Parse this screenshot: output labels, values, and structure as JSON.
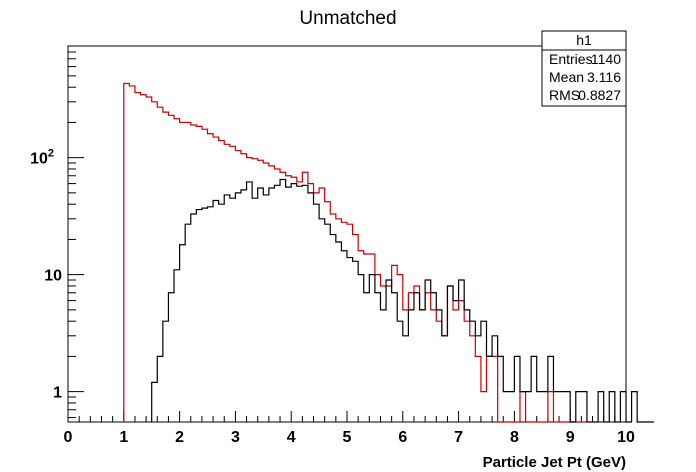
{
  "chart_data": {
    "type": "histogram",
    "title": "Unmatched",
    "xlabel": "Particle Jet Pt (GeV)",
    "ylabel": "",
    "xlim": [
      0,
      10
    ],
    "ylim": [
      0.55,
      900
    ],
    "y_scale": "log",
    "grid": false,
    "bin_width": 0.1,
    "x_ticks": [
      "0",
      "1",
      "2",
      "3",
      "4",
      "5",
      "6",
      "7",
      "8",
      "9",
      "10"
    ],
    "y_ticks": [
      {
        "value": 1,
        "base": "1",
        "exp": ""
      },
      {
        "value": 10,
        "base": "10",
        "exp": ""
      },
      {
        "value": 100,
        "base": "10",
        "exp": "2"
      }
    ],
    "stats_box": {
      "name": "h1",
      "placement": "top-right",
      "rows": [
        {
          "label": "Entries",
          "value": "1140"
        },
        {
          "label": "Mean",
          "value": "3.116"
        },
        {
          "label": "RMS",
          "value": "0.8827"
        }
      ]
    },
    "series": [
      {
        "color": "#cc0000",
        "x_start": 1.0,
        "values": [
          430,
          410,
          360,
          345,
          330,
          300,
          270,
          245,
          230,
          215,
          200,
          200,
          190,
          185,
          175,
          160,
          150,
          140,
          130,
          125,
          115,
          108,
          100,
          98,
          95,
          90,
          85,
          80,
          75,
          70,
          68,
          62,
          75,
          60,
          50,
          55,
          42,
          33,
          30,
          28,
          27,
          22,
          16,
          15,
          15,
          10,
          8,
          8,
          12,
          10,
          5,
          7,
          8,
          5,
          7,
          5,
          4,
          3,
          8,
          5,
          6,
          4,
          3,
          2,
          1,
          2,
          2,
          0,
          0,
          0,
          0,
          1,
          0,
          0,
          0,
          0,
          1,
          0,
          0,
          0,
          0,
          0,
          0
        ]
      },
      {
        "color": "#000000",
        "x_start": 1.5,
        "values": [
          1.2,
          2.0,
          4.0,
          7.0,
          11,
          18,
          27,
          33,
          36,
          37,
          38,
          43,
          40,
          48,
          45,
          50,
          53,
          62,
          45,
          55,
          48,
          55,
          58,
          65,
          56,
          60,
          57,
          58,
          50,
          40,
          30,
          27,
          22,
          19,
          16,
          14,
          13,
          10,
          7,
          10,
          7,
          5,
          9,
          7,
          4,
          3,
          5,
          7,
          5,
          9,
          7,
          5,
          3,
          8,
          6,
          9,
          5,
          4,
          3,
          4,
          2,
          3,
          2,
          1,
          1,
          2,
          1,
          1,
          2,
          1,
          1,
          2,
          1,
          1,
          1,
          0,
          1,
          1,
          0,
          0,
          1,
          0,
          1,
          0,
          1,
          0,
          1,
          0,
          0,
          0
        ]
      }
    ]
  }
}
